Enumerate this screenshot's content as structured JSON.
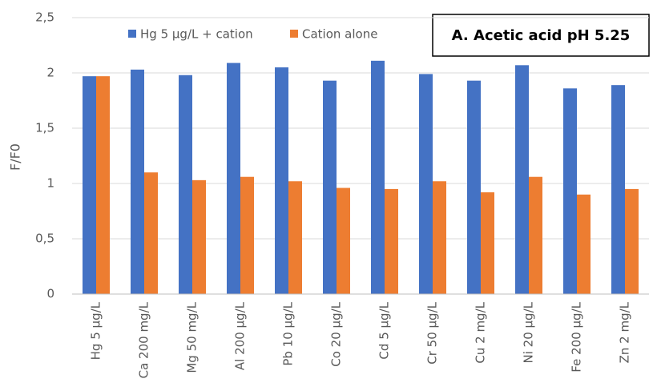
{
  "chart_data": {
    "type": "bar",
    "title": "A. Acetic acid pH 5.25",
    "y_label": "F/F0",
    "categories": [
      "Hg 5 µg/L",
      "Ca 200 mg/L",
      "Mg 50 mg/L",
      "Al 200 µg/L",
      "Pb 10 µg/L",
      "Co 20 µg/L",
      "Cd 5 µg/L",
      "Cr 50 µg/L",
      "Cu 2 mg/L",
      "Ni 20 µg/L",
      "Fe 200 µg/L",
      "Zn 2 mg/L"
    ],
    "series": [
      {
        "name": "Hg 5 µg/L + cation",
        "color": "#4472c4",
        "values": [
          1.97,
          2.03,
          1.98,
          2.09,
          2.05,
          1.93,
          2.11,
          1.99,
          1.93,
          2.07,
          1.86,
          1.89
        ]
      },
      {
        "name": "Cation alone",
        "color": "#ed7d31",
        "values": [
          1.97,
          1.1,
          1.03,
          1.06,
          1.02,
          0.96,
          0.95,
          1.02,
          0.92,
          1.06,
          0.9,
          0.95
        ]
      }
    ],
    "ylim": [
      0,
      2.5
    ],
    "yticks": [
      0,
      {
        "value": 0.5,
        "label": "0,5"
      },
      1,
      {
        "value": 1.5,
        "label": "1,5"
      },
      2,
      {
        "value": 2.5,
        "label": "2,5"
      }
    ],
    "grid": true
  }
}
